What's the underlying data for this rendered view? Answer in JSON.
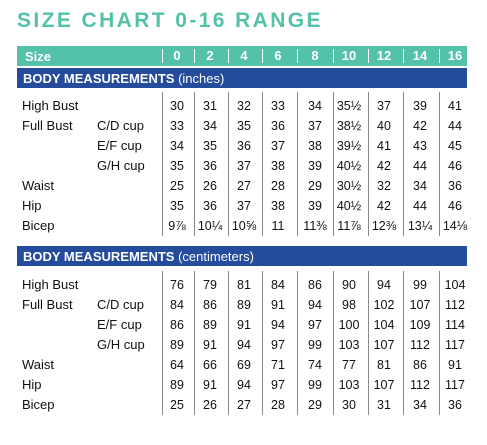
{
  "title": "SIZE CHART 0-16 RANGE",
  "size_label": "Size",
  "sizes": [
    "0",
    "2",
    "4",
    "6",
    "8",
    "10",
    "12",
    "14",
    "16"
  ],
  "inches": {
    "heading_bold": "BODY MEASUREMENTS",
    "heading_unit": "(inches)",
    "rows": [
      {
        "label": "High Bust",
        "sub": "",
        "values": [
          "30",
          "31",
          "32",
          "33",
          "34",
          "35½",
          "37",
          "39",
          "41"
        ]
      },
      {
        "label": "Full Bust",
        "sub": "C/D cup",
        "values": [
          "33",
          "34",
          "35",
          "36",
          "37",
          "38½",
          "40",
          "42",
          "44"
        ]
      },
      {
        "label": "",
        "sub": "E/F cup",
        "values": [
          "34",
          "35",
          "36",
          "37",
          "38",
          "39½",
          "41",
          "43",
          "45"
        ]
      },
      {
        "label": "",
        "sub": "G/H cup",
        "values": [
          "35",
          "36",
          "37",
          "38",
          "39",
          "40½",
          "42",
          "44",
          "46"
        ]
      },
      {
        "label": "Waist",
        "sub": "",
        "values": [
          "25",
          "26",
          "27",
          "28",
          "29",
          "30½",
          "32",
          "34",
          "36"
        ]
      },
      {
        "label": "Hip",
        "sub": "",
        "values": [
          "35",
          "36",
          "37",
          "38",
          "39",
          "40½",
          "42",
          "44",
          "46"
        ]
      },
      {
        "label": "Bicep",
        "sub": "",
        "values": [
          "9⅞",
          "10¼",
          "10⅝",
          "11",
          "11⅜",
          "11⅞",
          "12⅜",
          "13¼",
          "14⅛"
        ]
      }
    ]
  },
  "cm": {
    "heading_bold": "BODY MEASUREMENTS",
    "heading_unit": "(centimeters)",
    "rows": [
      {
        "label": "High Bust",
        "sub": "",
        "values": [
          "76",
          "79",
          "81",
          "84",
          "86",
          "90",
          "94",
          "99",
          "104"
        ]
      },
      {
        "label": "Full Bust",
        "sub": "C/D cup",
        "values": [
          "84",
          "86",
          "89",
          "91",
          "94",
          "98",
          "102",
          "107",
          "112"
        ]
      },
      {
        "label": "",
        "sub": "E/F cup",
        "values": [
          "86",
          "89",
          "91",
          "94",
          "97",
          "100",
          "104",
          "109",
          "114"
        ]
      },
      {
        "label": "",
        "sub": "G/H cup",
        "values": [
          "89",
          "91",
          "94",
          "97",
          "99",
          "103",
          "107",
          "112",
          "117"
        ]
      },
      {
        "label": "Waist",
        "sub": "",
        "values": [
          "64",
          "66",
          "69",
          "71",
          "74",
          "77",
          "81",
          "86",
          "91"
        ]
      },
      {
        "label": "Hip",
        "sub": "",
        "values": [
          "89",
          "91",
          "94",
          "97",
          "99",
          "103",
          "107",
          "112",
          "117"
        ]
      },
      {
        "label": "Bicep",
        "sub": "",
        "values": [
          "25",
          "26",
          "27",
          "28",
          "29",
          "30",
          "31",
          "34",
          "36"
        ]
      }
    ]
  }
}
